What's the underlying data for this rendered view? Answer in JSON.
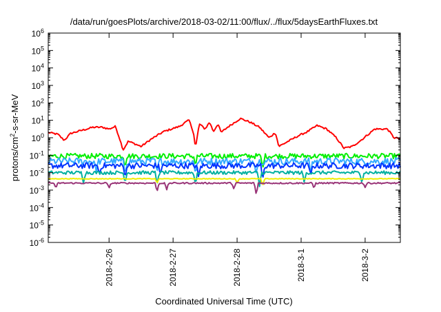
{
  "chart_data": {
    "type": "line",
    "title": "/data/run/goesPlots/archive/2018-03-02/11:00/flux/../flux/5daysEarthFluxes.txt",
    "xlabel": "Coordinated Universal Time (UTC)",
    "ylabel": {
      "prefix": "protons/cm",
      "sup": "2",
      "suffix": "-s-sr-MeV"
    },
    "yscale": "log",
    "ylim_exp": [
      -6,
      6
    ],
    "ytick_base": "10",
    "ytick_exponents": [
      "-6",
      "-5",
      "-4",
      "-3",
      "-2",
      "-1",
      "0",
      "1",
      "2",
      "3",
      "4",
      "5",
      "6"
    ],
    "x_unit": "days",
    "xlim": [
      0,
      5.5
    ],
    "x_ticks": [
      {
        "label": "2018-2-26",
        "value": 0.95
      },
      {
        "label": "2018-2-27",
        "value": 1.95
      },
      {
        "label": "2018-2-28",
        "value": 2.95
      },
      {
        "label": "2018-3-1",
        "value": 3.95
      },
      {
        "label": "2018-3-2",
        "value": 4.95
      }
    ],
    "grid": false,
    "legend": "none",
    "series": [
      {
        "color": "#ff0000",
        "noise": 0.05,
        "points": [
          [
            0,
            0.3
          ],
          [
            0.15,
            0.2
          ],
          [
            0.25,
            -0.15
          ],
          [
            0.35,
            0.25
          ],
          [
            0.55,
            0.45
          ],
          [
            0.7,
            0.6
          ],
          [
            0.85,
            0.6
          ],
          [
            0.95,
            0.5
          ],
          [
            1.05,
            0.65
          ],
          [
            1.12,
            -0.1
          ],
          [
            1.17,
            -0.7
          ],
          [
            1.25,
            -0.2
          ],
          [
            1.32,
            -0.3
          ],
          [
            1.45,
            -0.5
          ],
          [
            1.6,
            -0.1
          ],
          [
            1.8,
            0.35
          ],
          [
            2.05,
            0.65
          ],
          [
            2.15,
            0.9
          ],
          [
            2.2,
            1.0
          ],
          [
            2.27,
            0.3
          ],
          [
            2.3,
            -0.6
          ],
          [
            2.36,
            0.8
          ],
          [
            2.45,
            0.5
          ],
          [
            2.52,
            0.9
          ],
          [
            2.58,
            0.35
          ],
          [
            2.65,
            0.8
          ],
          [
            2.7,
            0.3
          ],
          [
            2.8,
            0.6
          ],
          [
            3.0,
            1.1
          ],
          [
            3.15,
            0.9
          ],
          [
            3.3,
            0.6
          ],
          [
            3.45,
            0.0
          ],
          [
            3.55,
            0.3
          ],
          [
            3.6,
            -0.5
          ],
          [
            3.75,
            -0.2
          ],
          [
            3.9,
            0.1
          ],
          [
            4.05,
            0.35
          ],
          [
            4.2,
            0.7
          ],
          [
            4.35,
            0.5
          ],
          [
            4.5,
            0.0
          ],
          [
            4.62,
            -0.6
          ],
          [
            4.75,
            -0.5
          ],
          [
            4.9,
            -0.1
          ],
          [
            5.1,
            0.5
          ],
          [
            5.3,
            0.5
          ],
          [
            5.4,
            0.0
          ],
          [
            5.5,
            -0.05
          ]
        ]
      },
      {
        "color": "#00ee00",
        "noise": 0.15,
        "points": [
          [
            0,
            -1.05
          ],
          [
            5.5,
            -1.05
          ]
        ],
        "dips": [
          [
            1.2,
            -1.7
          ],
          [
            2.3,
            -1.6
          ],
          [
            3.35,
            -1.8
          ]
        ]
      },
      {
        "color": "#33aaff",
        "noise": 0.2,
        "points": [
          [
            0,
            -1.35
          ],
          [
            5.5,
            -1.35
          ]
        ],
        "dips": [
          [
            0.75,
            -2.0
          ],
          [
            1.2,
            -2.1
          ],
          [
            1.7,
            -2.0
          ],
          [
            2.3,
            -2.1
          ],
          [
            3.25,
            -2.1
          ],
          [
            4.1,
            -2.0
          ]
        ]
      },
      {
        "color": "#0033ff",
        "noise": 0.17,
        "points": [
          [
            0,
            -1.6
          ],
          [
            5.5,
            -1.6
          ]
        ],
        "dips": [
          [
            0.8,
            -2.1
          ],
          [
            1.2,
            -2.3
          ],
          [
            1.75,
            -2.1
          ],
          [
            2.35,
            -2.3
          ],
          [
            3.35,
            -2.4
          ],
          [
            4.1,
            -2.2
          ]
        ]
      },
      {
        "color": "#00b0a0",
        "noise": 0.1,
        "points": [
          [
            0,
            -2.0
          ],
          [
            5.5,
            -2.0
          ]
        ],
        "dips": [
          [
            0.55,
            -2.6
          ],
          [
            1.2,
            -2.6
          ],
          [
            1.7,
            -2.7
          ],
          [
            2.3,
            -2.7
          ],
          [
            3.3,
            -2.8
          ],
          [
            4.0,
            -2.6
          ],
          [
            4.9,
            -2.6
          ]
        ]
      },
      {
        "color": "#eeee00",
        "noise": 0.02,
        "points": [
          [
            0,
            -2.35
          ],
          [
            5.5,
            -2.35
          ]
        ],
        "dips": [
          [
            1.7,
            -2.6
          ],
          [
            2.95,
            -2.6
          ],
          [
            3.35,
            -2.75
          ]
        ]
      },
      {
        "color": "#993377",
        "noise": 0.04,
        "points": [
          [
            0,
            -2.6
          ],
          [
            5.5,
            -2.6
          ]
        ],
        "dips": [
          [
            0.12,
            -2.9
          ],
          [
            0.95,
            -2.9
          ],
          [
            1.7,
            -3.1
          ],
          [
            1.85,
            -3.0
          ],
          [
            2.9,
            -2.95
          ],
          [
            3.25,
            -3.3
          ],
          [
            4.15,
            -2.9
          ],
          [
            4.95,
            -2.85
          ]
        ]
      }
    ]
  }
}
